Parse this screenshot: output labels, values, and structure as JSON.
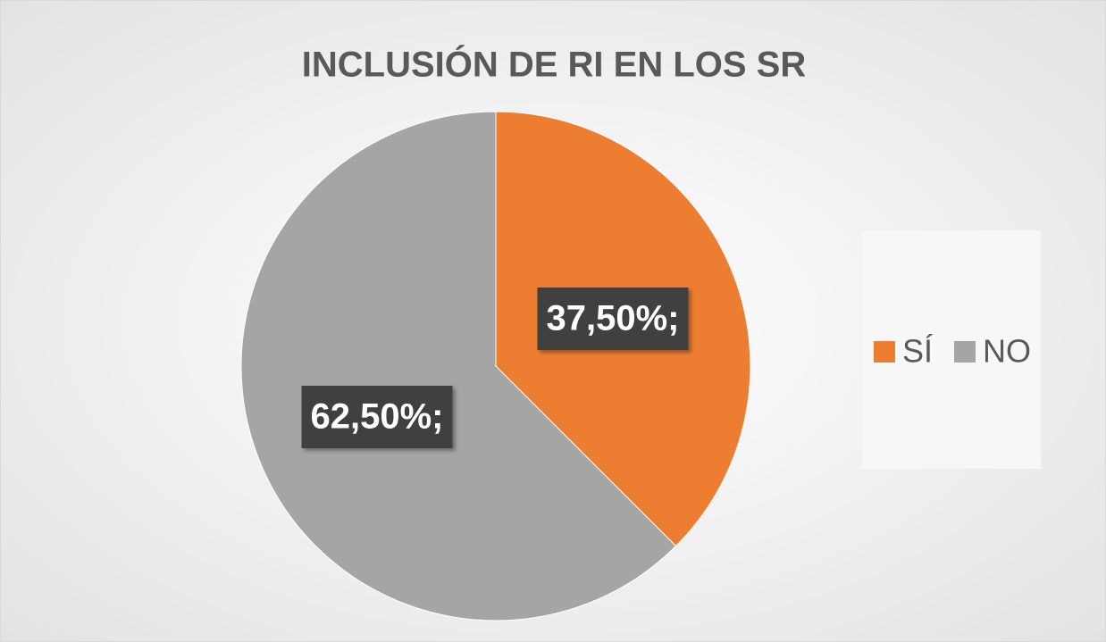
{
  "chart_data": {
    "type": "pie",
    "title": "INCLUSIÓN DE RI EN LOS SR",
    "categories": [
      "SÍ",
      "NO"
    ],
    "values": [
      37.5,
      62.5
    ],
    "value_labels": [
      "37,50%;",
      "62,50%;"
    ],
    "colors": [
      "#ed7d31",
      "#a5a5a5"
    ],
    "legend": "right"
  }
}
